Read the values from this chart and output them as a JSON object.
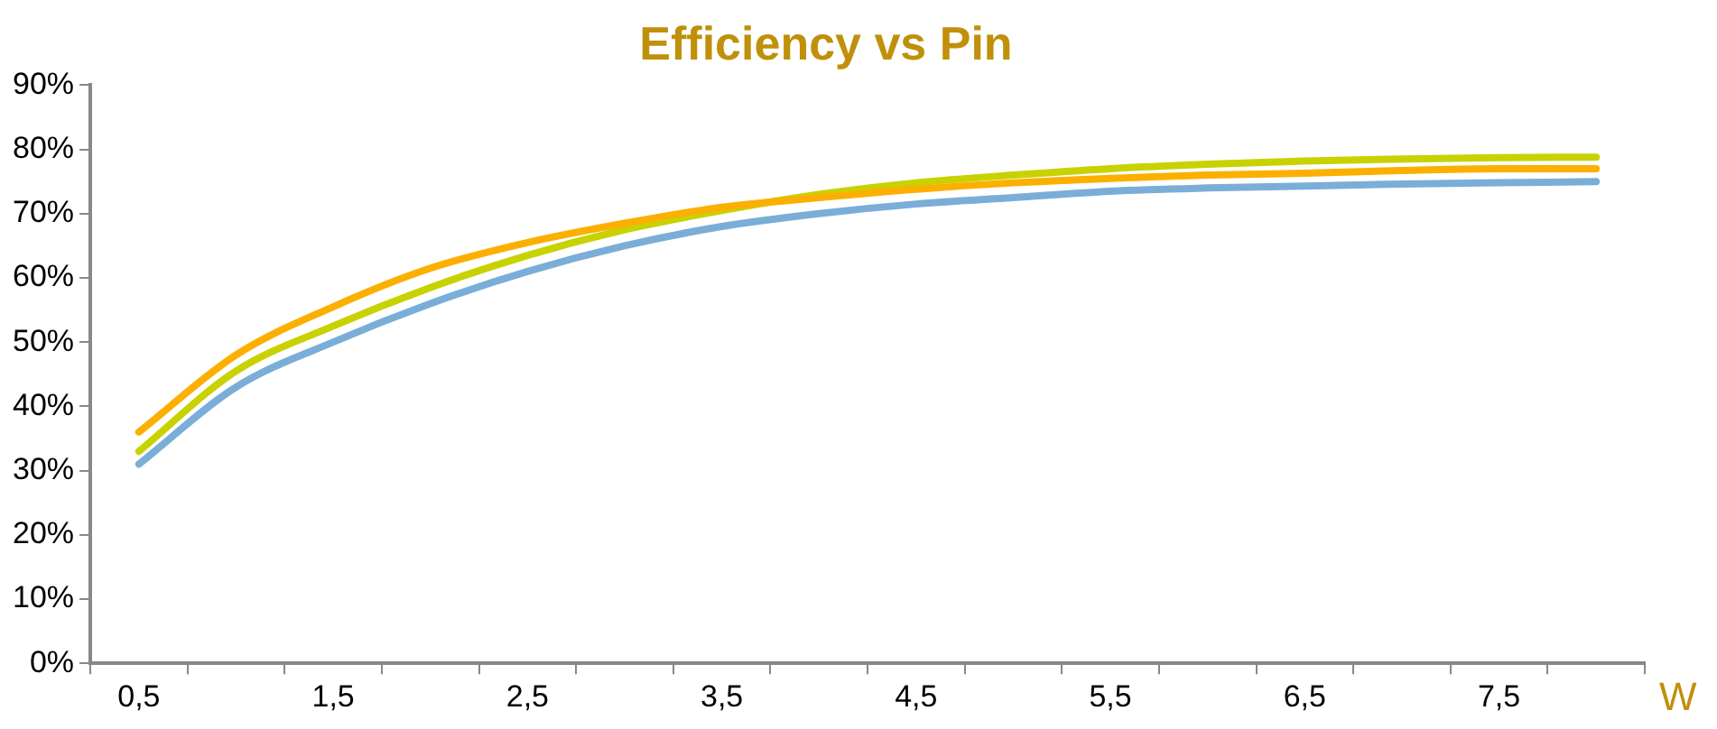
{
  "chart_data": {
    "type": "line",
    "title": "Efficiency vs Pin",
    "xlabel": "W",
    "categories": [
      "0,5",
      null,
      "1,5",
      null,
      "2,5",
      null,
      "3,5",
      null,
      "4,5",
      null,
      "5,5",
      null,
      "6,5",
      null,
      "7,5",
      null
    ],
    "series": [
      {
        "color": "#7aaed8",
        "values": [
          31,
          43,
          50,
          56,
          61,
          65,
          68,
          70,
          71.5,
          72.5,
          73.5,
          74,
          74.3,
          74.6,
          74.8,
          75
        ]
      },
      {
        "color": "#fbb000",
        "values": [
          36,
          48,
          55.5,
          61.5,
          65.5,
          68.5,
          71,
          72.5,
          73.8,
          74.8,
          75.5,
          76,
          76.3,
          76.7,
          77,
          77
        ]
      },
      {
        "color": "#c8d200",
        "values": [
          33,
          45.5,
          52.5,
          58.5,
          63.5,
          67.5,
          70.5,
          73,
          74.8,
          76,
          77,
          77.7,
          78.2,
          78.5,
          78.7,
          78.8
        ]
      }
    ],
    "ylim": [
      0,
      90
    ],
    "yticks": [
      {
        "value": 0,
        "label": "0%"
      },
      {
        "value": 10,
        "label": "10%"
      },
      {
        "value": 20,
        "label": "20%"
      },
      {
        "value": 30,
        "label": "30%"
      },
      {
        "value": 40,
        "label": "40%"
      },
      {
        "value": 50,
        "label": "50%"
      },
      {
        "value": 60,
        "label": "60%"
      },
      {
        "value": 70,
        "label": "70%"
      },
      {
        "value": 80,
        "label": "80%"
      },
      {
        "value": 90,
        "label": "90%"
      }
    ],
    "grid": false,
    "legend": false,
    "marker": "none",
    "line_style": "solid"
  }
}
